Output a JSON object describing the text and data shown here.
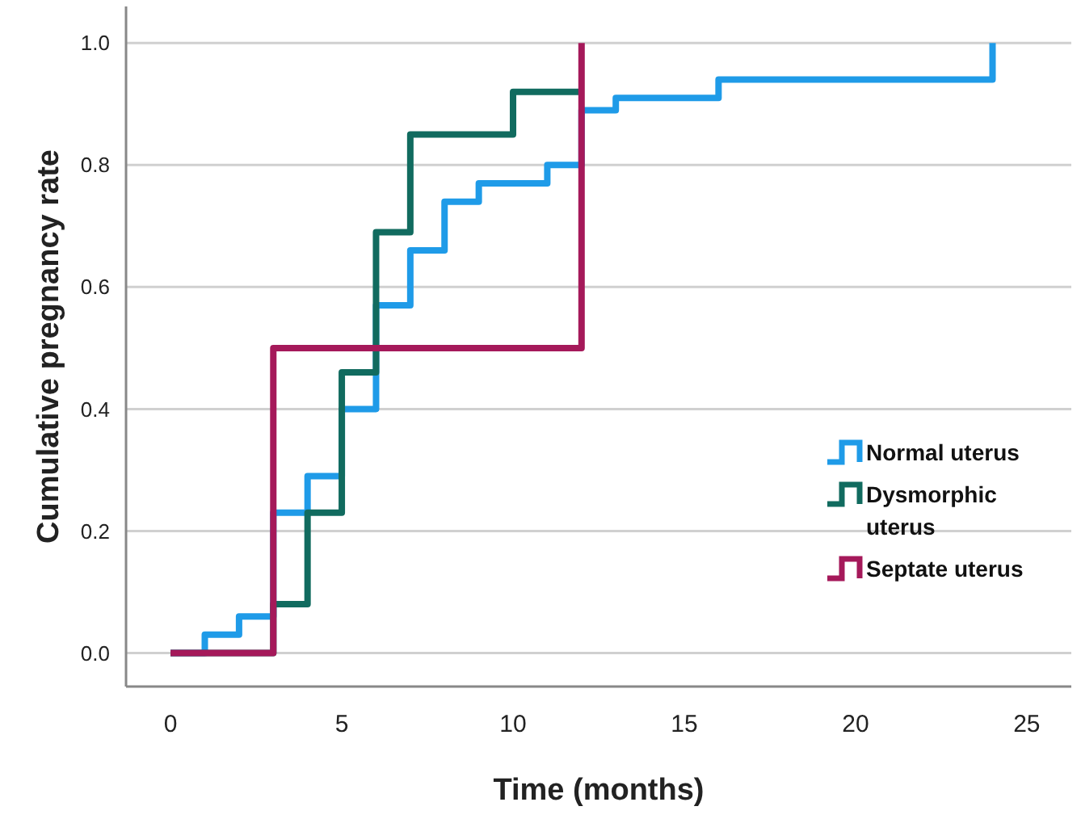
{
  "chart_data": {
    "type": "step",
    "xlabel": "Time (months)",
    "ylabel": "Cumulative pregnancy rate",
    "xlim": [
      -1.3,
      26.3
    ],
    "ylim": [
      -0.055,
      1.06
    ],
    "xticks": [
      0,
      5,
      10,
      15,
      20,
      25
    ],
    "yticks": [
      {
        "value": 0,
        "label": "0.0"
      },
      {
        "value": 0.2,
        "label": "0.2"
      },
      {
        "value": 0.4,
        "label": "0.4"
      },
      {
        "value": 0.6,
        "label": "0.6"
      },
      {
        "value": 0.8,
        "label": "0.8"
      },
      {
        "value": 1,
        "label": "1.0"
      }
    ],
    "grid": "y",
    "legend": "right",
    "line_style": "solid",
    "series": [
      {
        "name": "Normal uterus",
        "color": "#1f9be8",
        "x": [
          0,
          1,
          2,
          3,
          4,
          5,
          6,
          7,
          8,
          9,
          11,
          12,
          13,
          16,
          24
        ],
        "values": [
          0,
          0.03,
          0.06,
          0.23,
          0.29,
          0.4,
          0.57,
          0.66,
          0.74,
          0.77,
          0.8,
          0.89,
          0.91,
          0.94,
          1
        ]
      },
      {
        "name": "Dysmorphic uterus",
        "color": "#116b5f",
        "x": [
          0,
          3,
          4,
          5,
          6,
          7,
          10,
          12
        ],
        "values": [
          0,
          0.08,
          0.23,
          0.46,
          0.69,
          0.85,
          0.92,
          0.92
        ]
      },
      {
        "name": "Septate uterus",
        "color": "#a5195a",
        "x": [
          0,
          3,
          12
        ],
        "values": [
          0,
          0.5,
          1
        ]
      }
    ]
  }
}
